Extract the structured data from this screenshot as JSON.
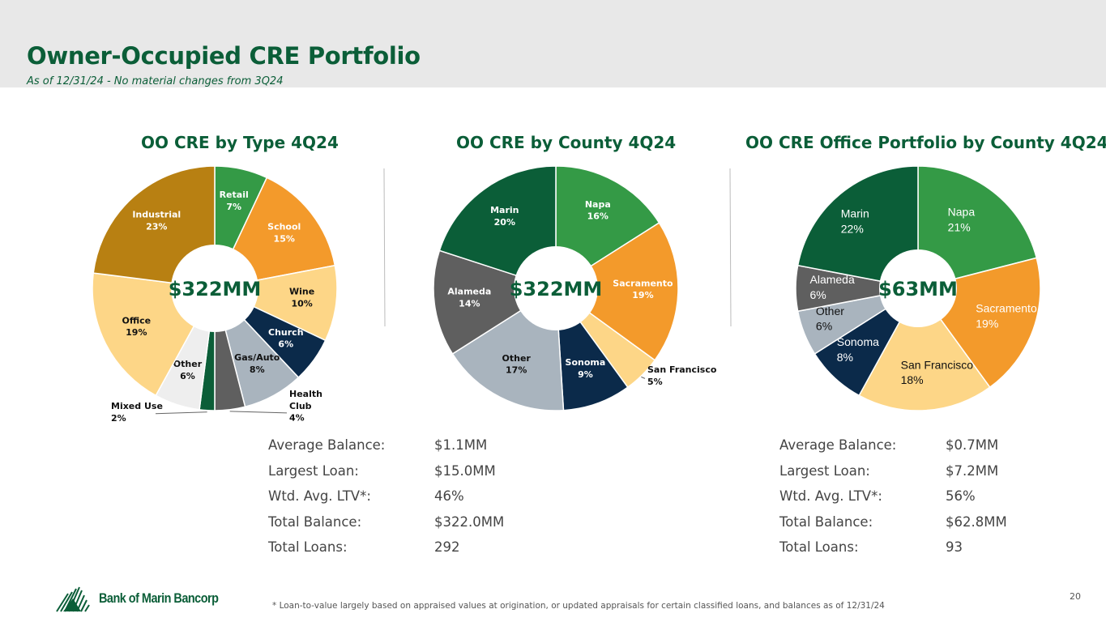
{
  "header": {
    "title": "Owner-Occupied CRE Portfolio",
    "subtitle": "As of 12/31/24 - No material changes from 3Q24"
  },
  "chart_data": [
    {
      "type": "pie",
      "title": "OO CRE by Type 4Q24",
      "center_label": "$322MM",
      "unit": "%",
      "slices": [
        {
          "label": "Retail",
          "value": 7,
          "color": "#349a46"
        },
        {
          "label": "School",
          "value": 15,
          "color": "#f39a2b"
        },
        {
          "label": "Wine",
          "value": 10,
          "color": "#fdd687"
        },
        {
          "label": "Church",
          "value": 6,
          "color": "#0b2a4a"
        },
        {
          "label": "Gas/Auto",
          "value": 8,
          "color": "#a9b4be"
        },
        {
          "label": "Health Club",
          "value": 4,
          "color": "#5f5f5f",
          "outside": true
        },
        {
          "label": "Mixed Use",
          "value": 2,
          "color": "#0b5e38",
          "outside": true
        },
        {
          "label": "Other",
          "value": 6,
          "color": "#eeeeee"
        },
        {
          "label": "Office",
          "value": 19,
          "color": "#fdd687"
        },
        {
          "label": "Industrial",
          "value": 23,
          "color": "#b88012"
        }
      ]
    },
    {
      "type": "pie",
      "title": "OO CRE by County 4Q24",
      "center_label": "$322MM",
      "unit": "%",
      "slices": [
        {
          "label": "Napa",
          "value": 16,
          "color": "#349a46"
        },
        {
          "label": "Sacramento",
          "value": 19,
          "color": "#f39a2b"
        },
        {
          "label": "San Francisco",
          "value": 5,
          "color": "#fdd687",
          "outside": true
        },
        {
          "label": "Sonoma",
          "value": 9,
          "color": "#0b2a4a"
        },
        {
          "label": "Other",
          "value": 17,
          "color": "#a9b4be"
        },
        {
          "label": "Alameda",
          "value": 14,
          "color": "#5f5f5f"
        },
        {
          "label": "Marin",
          "value": 20,
          "color": "#0b5e38"
        }
      ]
    },
    {
      "type": "pie",
      "title": "OO CRE Office Portfolio by County 4Q24",
      "center_label": "$63MM",
      "unit": "%",
      "slices": [
        {
          "label": "Napa",
          "value": 21,
          "color": "#349a46"
        },
        {
          "label": "Sacramento",
          "value": 19,
          "color": "#f39a2b"
        },
        {
          "label": "San Francisco",
          "value": 18,
          "color": "#fdd687"
        },
        {
          "label": "Sonoma",
          "value": 8,
          "color": "#0b2a4a"
        },
        {
          "label": "Other",
          "value": 6,
          "color": "#a9b4be"
        },
        {
          "label": "Alameda",
          "value": 6,
          "color": "#5f5f5f"
        },
        {
          "label": "Marin",
          "value": 22,
          "color": "#0b5e38"
        }
      ]
    }
  ],
  "stats_left": [
    {
      "k": "Average Balance:",
      "v": "$1.1MM"
    },
    {
      "k": "Largest Loan:",
      "v": "$15.0MM"
    },
    {
      "k": "Wtd. Avg. LTV*:",
      "v": "46%"
    },
    {
      "k": "Total Balance:",
      "v": "$322.0MM"
    },
    {
      "k": "Total Loans:",
      "v": "292"
    }
  ],
  "stats_right": [
    {
      "k": "Average Balance:",
      "v": "$0.7MM"
    },
    {
      "k": "Largest Loan:",
      "v": "$7.2MM"
    },
    {
      "k": "Wtd. Avg. LTV*:",
      "v": "56%"
    },
    {
      "k": "Total Balance:",
      "v": "$62.8MM"
    },
    {
      "k": "Total Loans:",
      "v": "93"
    }
  ],
  "footer": {
    "note": "*  Loan-to-value largely based on appraised values at origination, or updated appraisals for certain classified loans, and balances as of 12/31/24",
    "page": "20",
    "logo": "Bank of Marin Bancorp"
  }
}
